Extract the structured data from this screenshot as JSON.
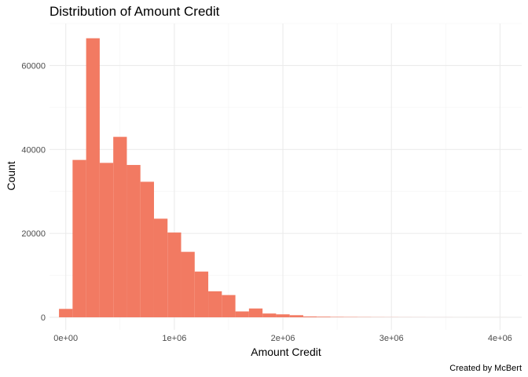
{
  "chart_data": {
    "type": "bar",
    "title": "Distribution of Amount Credit",
    "xlabel": "Amount Credit",
    "ylabel": "Count",
    "caption": "Created by McBert",
    "bar_color": "#F27A62",
    "grid": true,
    "xlim": [
      -150000,
      4200000
    ],
    "ylim": [
      -3000,
      70000
    ],
    "x_ticks": [
      {
        "value": 0,
        "label": "0e+00"
      },
      {
        "value": 1000000,
        "label": "1e+06"
      },
      {
        "value": 2000000,
        "label": "2e+06"
      },
      {
        "value": 3000000,
        "label": "3e+06"
      },
      {
        "value": 4000000,
        "label": "4e+06"
      }
    ],
    "y_ticks": [
      {
        "value": 0,
        "label": "0"
      },
      {
        "value": 20000,
        "label": "20000"
      },
      {
        "value": 40000,
        "label": "40000"
      },
      {
        "value": 60000,
        "label": "60000"
      }
    ],
    "bin_width": 125000,
    "bin_centers": [
      0,
      125000,
      250000,
      375000,
      500000,
      625000,
      750000,
      875000,
      1000000,
      1125000,
      1250000,
      1375000,
      1500000,
      1625000,
      1750000,
      1875000,
      2000000,
      2125000,
      2250000,
      2375000,
      2500000,
      2625000,
      2750000,
      2875000,
      3000000,
      3125000,
      3250000,
      3375000,
      3500000,
      3625000,
      3750000,
      3875000,
      4000000
    ],
    "values": [
      2000,
      37500,
      66500,
      36800,
      43000,
      36300,
      32300,
      23500,
      20200,
      15600,
      10900,
      6200,
      5300,
      1400,
      2100,
      900,
      700,
      500,
      200,
      150,
      100,
      80,
      60,
      40,
      30,
      20,
      15,
      10,
      10,
      5,
      5,
      5,
      5
    ]
  }
}
